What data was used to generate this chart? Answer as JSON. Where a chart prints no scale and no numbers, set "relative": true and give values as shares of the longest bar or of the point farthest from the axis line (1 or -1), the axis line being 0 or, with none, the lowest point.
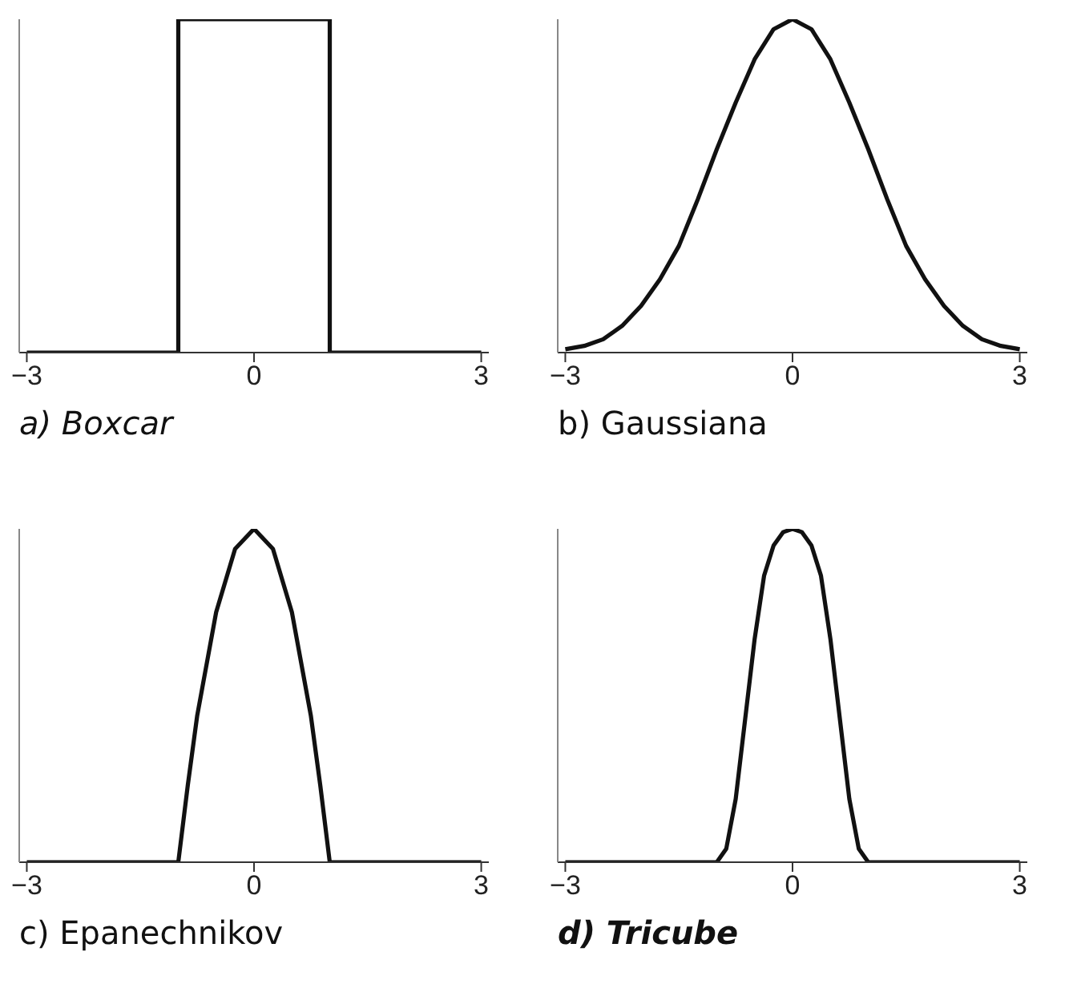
{
  "chart_data": [
    {
      "type": "line",
      "xlabel": "a) Boxcar",
      "relative": true,
      "color": "#111111",
      "marker": "none",
      "xlim": [
        -3.1,
        3.1
      ],
      "xticks": [
        -3,
        0,
        3
      ],
      "x": [
        -3,
        -1,
        -1,
        1,
        1,
        3
      ],
      "values": [
        0,
        0,
        1,
        1,
        0,
        0
      ]
    },
    {
      "type": "line",
      "xlabel": "b) Gaussiana",
      "relative": true,
      "color": "#111111",
      "marker": "none",
      "xlim": [
        -3.1,
        3.1
      ],
      "xticks": [
        -3,
        0,
        3
      ],
      "x": [
        -3,
        -2.75,
        -2.5,
        -2.25,
        -2,
        -1.75,
        -1.5,
        -1.25,
        -1,
        -0.75,
        -0.5,
        -0.25,
        0,
        0.25,
        0.5,
        0.75,
        1,
        1.25,
        1.5,
        1.75,
        2,
        2.25,
        2.5,
        2.75,
        3
      ],
      "values": [
        0.01,
        0.02,
        0.04,
        0.08,
        0.14,
        0.22,
        0.32,
        0.46,
        0.61,
        0.75,
        0.88,
        0.97,
        1,
        0.97,
        0.88,
        0.75,
        0.61,
        0.46,
        0.32,
        0.22,
        0.14,
        0.08,
        0.04,
        0.02,
        0.01
      ]
    },
    {
      "type": "line",
      "xlabel": "c) Epanechnikov",
      "relative": true,
      "color": "#111111",
      "marker": "none",
      "xlim": [
        -3.1,
        3.1
      ],
      "xticks": [
        -3,
        0,
        3
      ],
      "x": [
        -3,
        -1,
        -0.875,
        -0.75,
        -0.5,
        -0.25,
        0,
        0.25,
        0.5,
        0.75,
        0.875,
        1,
        3
      ],
      "values": [
        0,
        0,
        0.23,
        0.44,
        0.75,
        0.94,
        1,
        0.94,
        0.75,
        0.44,
        0.23,
        0,
        0
      ]
    },
    {
      "type": "line",
      "xlabel": "d) Tricube",
      "relative": true,
      "color": "#111111",
      "marker": "none",
      "xlim": [
        -3.1,
        3.1
      ],
      "xticks": [
        -3,
        0,
        3
      ],
      "x": [
        -3,
        -1,
        -0.875,
        -0.75,
        -0.625,
        -0.5,
        -0.375,
        -0.25,
        -0.125,
        0,
        0.125,
        0.25,
        0.375,
        0.5,
        0.625,
        0.75,
        0.875,
        1,
        3
      ],
      "values": [
        0,
        0,
        0.04,
        0.19,
        0.43,
        0.67,
        0.86,
        0.95,
        0.99,
        1,
        0.99,
        0.95,
        0.86,
        0.67,
        0.43,
        0.19,
        0.04,
        0,
        0
      ]
    }
  ]
}
